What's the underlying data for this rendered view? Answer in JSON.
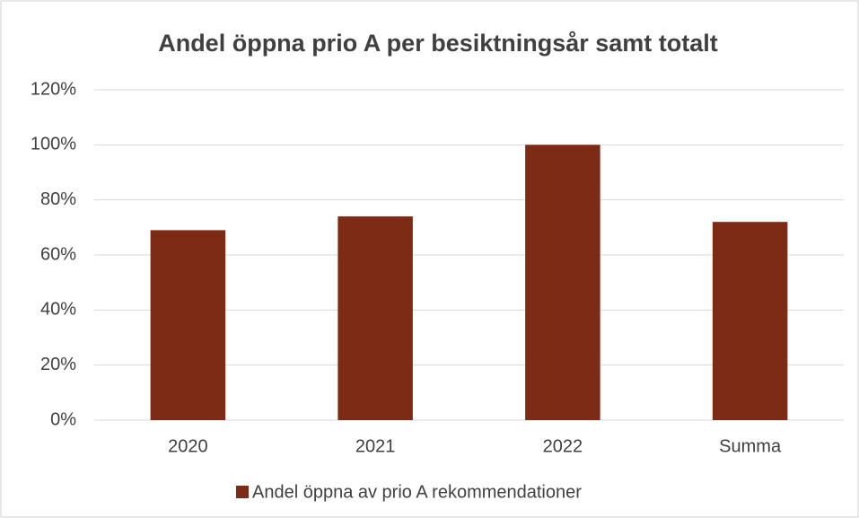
{
  "chart_data": {
    "type": "bar",
    "title": "Andel öppna prio A per besiktningsår samt totalt",
    "categories": [
      "2020",
      "2021",
      "2022",
      "Summa"
    ],
    "series": [
      {
        "name": "Andel öppna av prio A rekommendationer",
        "color": "#7e2b16",
        "values": [
          69,
          74,
          100,
          72
        ]
      }
    ],
    "ylim": [
      0,
      120
    ],
    "yticks": [
      {
        "value": 0,
        "label": "0%"
      },
      {
        "value": 20,
        "label": "20%"
      },
      {
        "value": 40,
        "label": "40%"
      },
      {
        "value": 60,
        "label": "60%"
      },
      {
        "value": 80,
        "label": "80%"
      },
      {
        "value": 100,
        "label": "100%"
      },
      {
        "value": 120,
        "label": "120%"
      }
    ],
    "grid": true,
    "legend": "bottom"
  }
}
